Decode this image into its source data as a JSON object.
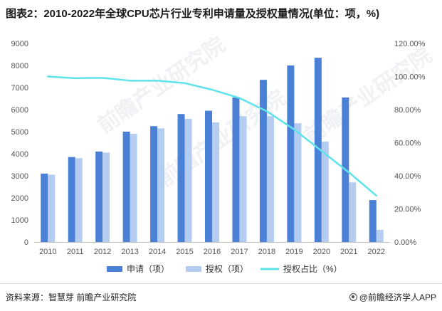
{
  "title": "图表2：2010-2022年全球CPU芯片行业专利申请量及授权量情况(单位：项，%)",
  "watermark": "前瞻产业研究院",
  "footer": {
    "source": "资料来源：智慧芽 前瞻产业研究院",
    "brand": "@前瞻经济学人APP"
  },
  "colors": {
    "apply": "#4a80d6",
    "grant": "#b3ccf0",
    "ratio": "#5ee3ea",
    "axis": "#bfbfbf",
    "tick": "#555555"
  },
  "chart_data": {
    "type": "bar",
    "categories": [
      "2010",
      "2011",
      "2012",
      "2013",
      "2014",
      "2015",
      "2016",
      "2017",
      "2018",
      "2019",
      "2020",
      "2021",
      "2022"
    ],
    "series": [
      {
        "name": "申请（项）",
        "type": "bar",
        "axis": "left",
        "values": [
          3100,
          3850,
          4100,
          5000,
          5250,
          5800,
          5950,
          6550,
          7350,
          8000,
          8350,
          6550,
          1900
        ]
      },
      {
        "name": "授权（项）",
        "type": "bar",
        "axis": "left",
        "values": [
          3050,
          3800,
          4050,
          4900,
          5150,
          5580,
          5420,
          5700,
          5700,
          5380,
          4550,
          2700,
          550
        ]
      },
      {
        "name": "授权占比（%）",
        "type": "line",
        "axis": "right",
        "values": [
          100,
          99,
          99.2,
          97.5,
          97.5,
          96,
          92,
          87,
          79,
          68,
          55,
          42,
          28
        ]
      }
    ],
    "left_axis": {
      "min": 0,
      "max": 9000,
      "step": 1000,
      "ticks": [
        "0",
        "1000",
        "2000",
        "3000",
        "4000",
        "5000",
        "6000",
        "7000",
        "8000",
        "9000"
      ]
    },
    "right_axis": {
      "min": 0,
      "max": 120,
      "step": 20,
      "ticks": [
        "0.00%",
        "20.00%",
        "40.00%",
        "60.00%",
        "80.00%",
        "100.00%",
        "120.00%"
      ]
    },
    "legend": [
      "申请（项）",
      "授权（项）",
      "授权占比（%）"
    ],
    "legend_position": "bottom"
  }
}
